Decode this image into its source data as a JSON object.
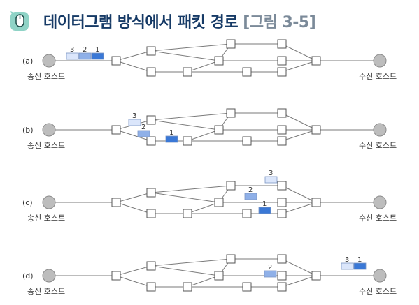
{
  "title": {
    "main": "데이터그램 방식에서 패킷 경로",
    "figure_ref": "[그림 3-5]",
    "icon": "mouse-badge-icon"
  },
  "colors": {
    "title": "#163a66",
    "figure_ref": "#7b8a99",
    "packet_1": "#3a78d6",
    "packet_2": "#8fb0e8",
    "packet_3": "#dbe6fb",
    "icon_bg": "#8fd3c6"
  },
  "panels": [
    {
      "label": "(a)",
      "sender": "송신 호스트",
      "receiver": "수신 호스트",
      "packets": [
        {
          "num": "3",
          "location": "at-sender"
        },
        {
          "num": "2",
          "location": "at-sender"
        },
        {
          "num": "1",
          "location": "at-sender"
        }
      ]
    },
    {
      "label": "(b)",
      "sender": "송신 호스트",
      "receiver": "수신 호스트",
      "packets": [
        {
          "num": "3",
          "location": "in-network"
        },
        {
          "num": "2",
          "location": "in-network"
        },
        {
          "num": "1",
          "location": "in-network"
        }
      ]
    },
    {
      "label": "(c)",
      "sender": "송신 호스트",
      "receiver": "수신 호스트",
      "packets": [
        {
          "num": "3",
          "location": "in-network"
        },
        {
          "num": "2",
          "location": "in-network"
        },
        {
          "num": "1",
          "location": "in-network"
        }
      ]
    },
    {
      "label": "(d)",
      "sender": "송신 호스트",
      "receiver": "수신 호스트",
      "packets": [
        {
          "num": "2",
          "location": "in-network"
        },
        {
          "num": "3",
          "location": "at-receiver"
        },
        {
          "num": "1",
          "location": "at-receiver"
        }
      ]
    }
  ]
}
